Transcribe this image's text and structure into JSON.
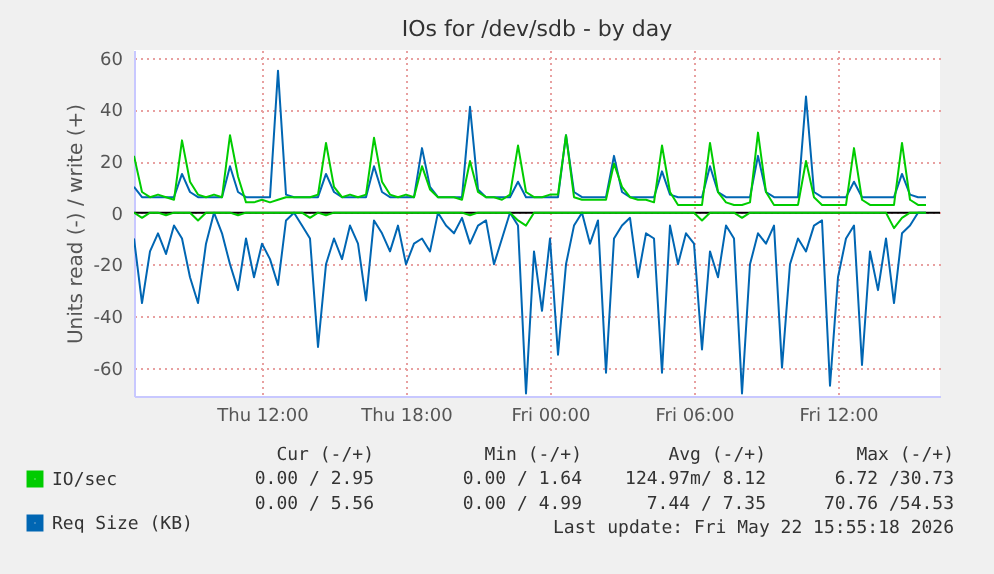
{
  "chart_data": {
    "type": "line",
    "title": "IOs for /dev/sdb - by day",
    "ylabel": "Units read (-) / write (+)",
    "x": [
      "2026-05-21T06:40",
      "2026-05-21T07:00",
      "2026-05-21T07:20",
      "2026-05-21T07:40",
      "2026-05-21T08:00",
      "2026-05-21T08:20",
      "2026-05-21T08:40",
      "2026-05-21T09:00",
      "2026-05-21T09:20",
      "2026-05-21T09:40",
      "2026-05-21T10:00",
      "2026-05-21T10:20",
      "2026-05-21T10:40",
      "2026-05-21T11:00",
      "2026-05-21T11:20",
      "2026-05-21T11:40",
      "2026-05-21T12:00",
      "2026-05-21T12:20",
      "2026-05-21T12:40",
      "2026-05-21T13:00",
      "2026-05-21T13:20",
      "2026-05-21T13:40",
      "2026-05-21T14:00",
      "2026-05-21T14:20",
      "2026-05-21T14:40",
      "2026-05-21T15:00",
      "2026-05-21T15:20",
      "2026-05-21T15:40",
      "2026-05-21T16:00",
      "2026-05-21T16:20",
      "2026-05-21T16:40",
      "2026-05-21T17:00",
      "2026-05-21T17:20",
      "2026-05-21T17:40",
      "2026-05-21T18:00",
      "2026-05-21T18:20",
      "2026-05-21T18:40",
      "2026-05-21T19:00",
      "2026-05-21T19:20",
      "2026-05-21T19:40",
      "2026-05-21T20:00",
      "2026-05-21T20:20",
      "2026-05-21T20:40",
      "2026-05-21T21:00",
      "2026-05-21T21:20",
      "2026-05-21T21:40",
      "2026-05-21T22:00",
      "2026-05-21T22:20",
      "2026-05-21T22:40",
      "2026-05-21T23:00",
      "2026-05-21T23:20",
      "2026-05-21T23:40",
      "2026-05-22T00:00",
      "2026-05-22T00:20",
      "2026-05-22T00:40",
      "2026-05-22T01:00",
      "2026-05-22T01:20",
      "2026-05-22T01:40",
      "2026-05-22T02:00",
      "2026-05-22T02:20",
      "2026-05-22T02:40",
      "2026-05-22T03:00",
      "2026-05-22T03:20",
      "2026-05-22T03:40",
      "2026-05-22T04:00",
      "2026-05-22T04:20",
      "2026-05-22T04:40",
      "2026-05-22T05:00",
      "2026-05-22T05:20",
      "2026-05-22T05:40",
      "2026-05-22T06:00",
      "2026-05-22T06:20",
      "2026-05-22T06:40",
      "2026-05-22T07:00",
      "2026-05-22T07:20",
      "2026-05-22T07:40",
      "2026-05-22T08:00",
      "2026-05-22T08:20",
      "2026-05-22T08:40",
      "2026-05-22T09:00",
      "2026-05-22T09:20",
      "2026-05-22T09:40",
      "2026-05-22T10:00",
      "2026-05-22T10:20",
      "2026-05-22T10:40",
      "2026-05-22T11:00",
      "2026-05-22T11:20",
      "2026-05-22T11:40",
      "2026-05-22T12:00",
      "2026-05-22T12:20",
      "2026-05-22T12:40",
      "2026-05-22T13:00",
      "2026-05-22T13:20",
      "2026-05-22T13:40",
      "2026-05-22T14:00",
      "2026-05-22T14:20",
      "2026-05-22T14:40",
      "2026-05-22T15:00",
      "2026-05-22T15:20",
      "2026-05-22T15:40"
    ],
    "series": [
      {
        "color": "#00cc00",
        "values": [
          0,
          -2,
          0,
          0,
          -1,
          0,
          0,
          0,
          -3,
          0,
          0,
          0,
          0,
          -1,
          0,
          0,
          0,
          0,
          0,
          0,
          0,
          0,
          -2,
          0,
          -1,
          0,
          0,
          0,
          0,
          0,
          0,
          0,
          0,
          0,
          0,
          0,
          0,
          0,
          0,
          0,
          0,
          0,
          -1,
          0,
          0,
          0,
          0,
          0,
          -3,
          -5,
          0,
          0,
          0,
          0,
          0,
          0,
          0,
          0,
          0,
          0,
          0,
          0,
          0,
          0,
          0,
          0,
          0,
          0,
          0,
          0,
          0,
          -3,
          0,
          0,
          0,
          0,
          -2,
          0,
          0,
          0,
          0,
          0,
          0,
          0,
          0,
          0,
          0,
          0,
          0,
          0,
          0,
          0,
          0,
          0,
          0,
          -6,
          -2,
          0,
          0,
          0
        ]
      },
      {
        "name": "IO/sec",
        "color": "#00cc00",
        "values": [
          22,
          8,
          6,
          7,
          6,
          5,
          28,
          12,
          7,
          6,
          7,
          6,
          30,
          14,
          4,
          4,
          5,
          4,
          5,
          6,
          6,
          6,
          6,
          7,
          27,
          10,
          6,
          7,
          6,
          7,
          29,
          12,
          7,
          6,
          7,
          6,
          18,
          9,
          6,
          6,
          6,
          5,
          20,
          8,
          6,
          6,
          5,
          7,
          26,
          8,
          6,
          6,
          7,
          7,
          30,
          6,
          5,
          5,
          5,
          5,
          19,
          10,
          6,
          5,
          5,
          4,
          26,
          8,
          3,
          3,
          3,
          3,
          27,
          8,
          4,
          3,
          3,
          4,
          31,
          8,
          3,
          3,
          3,
          3,
          20,
          6,
          3,
          3,
          3,
          3,
          25,
          5,
          3,
          3,
          3,
          3,
          27,
          5,
          3,
          3
        ]
      },
      {
        "color": "#0066b3",
        "values": [
          -10,
          -35,
          -15,
          -8,
          -16,
          -5,
          -10,
          -25,
          -35,
          -12,
          0,
          -8,
          -20,
          -30,
          -10,
          -25,
          -12,
          -18,
          -28,
          -3,
          0,
          -5,
          -10,
          -52,
          -20,
          -10,
          -18,
          -5,
          -12,
          -34,
          -3,
          -8,
          -15,
          -5,
          -20,
          -12,
          -10,
          -15,
          0,
          -5,
          -8,
          -2,
          -12,
          -5,
          -3,
          -20,
          -10,
          0,
          -5,
          -70,
          -15,
          -38,
          -10,
          -55,
          -20,
          -5,
          0,
          -12,
          -3,
          -62,
          -10,
          -5,
          -2,
          -25,
          -8,
          -10,
          -62,
          -5,
          -20,
          -8,
          -12,
          -53,
          -15,
          -25,
          -5,
          -10,
          -70,
          -20,
          -8,
          -12,
          -5,
          -60,
          -20,
          -10,
          -15,
          -5,
          -3,
          -67,
          -25,
          -10,
          -5,
          -59,
          -15,
          -30,
          -10,
          -35,
          -8,
          -5,
          0,
          0
        ]
      },
      {
        "name": "Req Size (KB)",
        "color": "#0066b3",
        "values": [
          10,
          6,
          6,
          6,
          6,
          6,
          15,
          8,
          6,
          6,
          6,
          6,
          18,
          8,
          6,
          6,
          6,
          6,
          55,
          7,
          6,
          6,
          6,
          6,
          15,
          8,
          6,
          6,
          6,
          6,
          18,
          8,
          6,
          6,
          6,
          6,
          25,
          10,
          6,
          6,
          6,
          6,
          41,
          9,
          6,
          6,
          6,
          6,
          12,
          6,
          6,
          6,
          6,
          6,
          30,
          8,
          6,
          6,
          6,
          6,
          22,
          8,
          6,
          6,
          6,
          6,
          16,
          7,
          6,
          6,
          6,
          6,
          18,
          8,
          6,
          6,
          6,
          6,
          22,
          8,
          6,
          6,
          6,
          6,
          45,
          8,
          6,
          6,
          6,
          6,
          12,
          6,
          6,
          6,
          6,
          6,
          15,
          7,
          6,
          6
        ]
      }
    ],
    "xlim": [
      "2026-05-21T06:40",
      "2026-05-22T16:15"
    ],
    "xticks": [
      {
        "value": "2026-05-21T12:00",
        "label": "Thu 12:00"
      },
      {
        "value": "2026-05-21T18:00",
        "label": "Thu 18:00"
      },
      {
        "value": "2026-05-22T00:00",
        "label": "Fri 00:00"
      },
      {
        "value": "2026-05-22T06:00",
        "label": "Fri 06:00"
      },
      {
        "value": "2026-05-22T12:00",
        "label": "Fri 12:00"
      }
    ],
    "ylim": [
      -71,
      63
    ],
    "yticks": [
      -60,
      -40,
      -20,
      0,
      20,
      40,
      60
    ],
    "ref_lines": [
      {
        "axis": "y",
        "value": 0,
        "color": "#000000"
      }
    ],
    "grid": true,
    "legend": "bottom left",
    "annotations": [
      "Cur (-/+)",
      "Min (-/+)",
      "Avg (-/+)",
      "Max (-/+)",
      "0.00 / 2.95",
      "0.00 / 1.64",
      "124.97m/ 8.12",
      "6.72 /30.73",
      "0.00 / 5.56",
      "0.00 / 4.99",
      "7.44 / 7.35",
      "70.76 /54.53",
      "Last update: Fri May 22 15:55:18 2026"
    ]
  }
}
